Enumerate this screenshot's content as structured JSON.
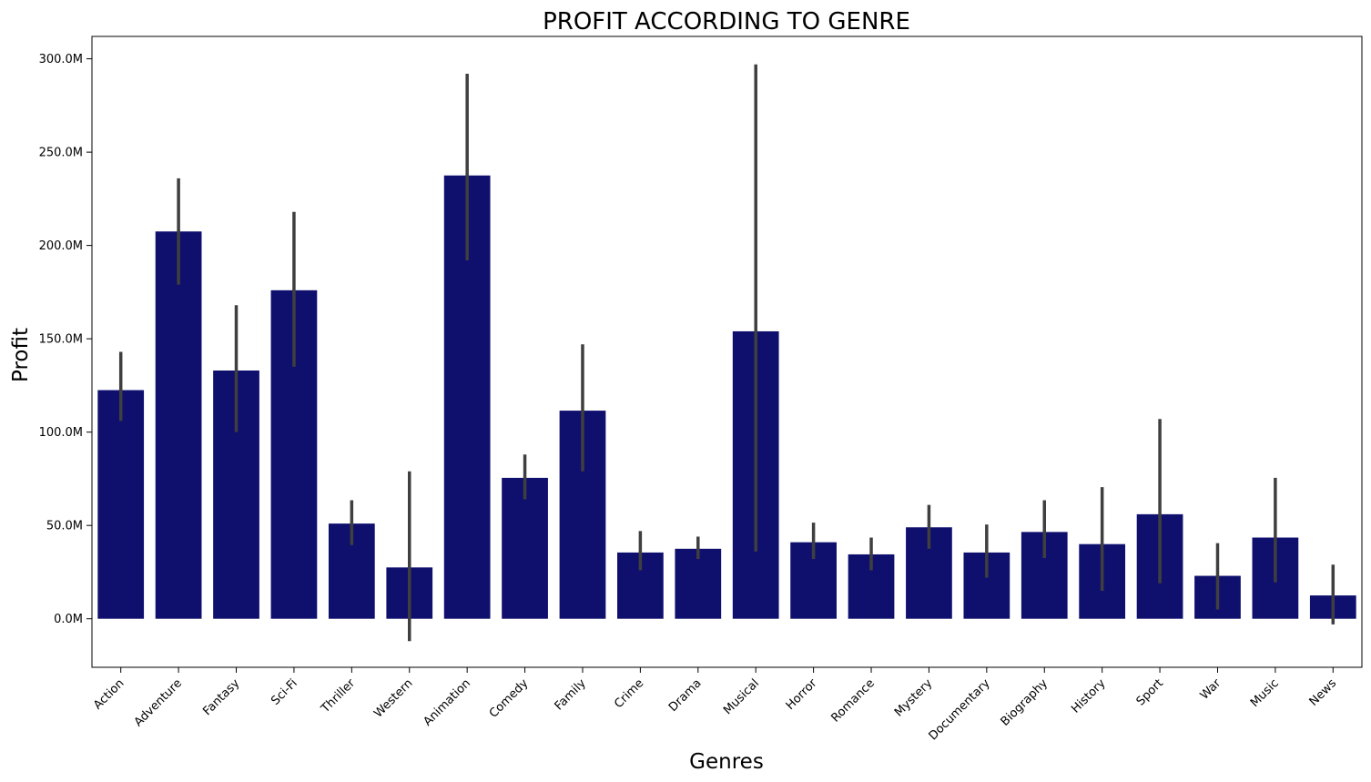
{
  "chart_data": {
    "type": "bar",
    "title": "PROFIT ACCORDING TO GENRE",
    "xlabel": "Genres",
    "ylabel": "Profit",
    "ylim": [
      -26,
      312
    ],
    "yticks": [
      0,
      50,
      100,
      150,
      200,
      250,
      300
    ],
    "ytick_labels": [
      "0.0M",
      "50.0M",
      "100.0M",
      "150.0M",
      "200.0M",
      "250.0M",
      "300.0M"
    ],
    "value_unit": "M",
    "grid": false,
    "legend": "none",
    "bar_color": "#0f0f6e",
    "errorbar_color": "#3f3f3f",
    "categories": [
      "Action",
      "Adventure",
      "Fantasy",
      "Sci-Fi",
      "Thriller",
      "Western",
      "Animation",
      "Comedy",
      "Family",
      "Crime",
      "Drama",
      "Musical",
      "Horror",
      "Romance",
      "Mystery",
      "Documentary",
      "Biography",
      "History",
      "Sport",
      "War",
      "Music",
      "News"
    ],
    "values": [
      122.5,
      207.5,
      133,
      176,
      51,
      27.5,
      237.5,
      75.5,
      111.5,
      35.5,
      37.5,
      154,
      41,
      34.5,
      49,
      35.5,
      46.5,
      40,
      56,
      23,
      43.5,
      12.5
    ],
    "ci_low": [
      106,
      179,
      100,
      135,
      39.5,
      -12,
      192,
      64,
      79,
      26,
      32,
      36,
      32,
      26,
      37.5,
      22,
      32.5,
      15,
      19,
      5,
      19.5,
      -3
    ],
    "ci_high": [
      143,
      236,
      168,
      218,
      63.5,
      79,
      292,
      88,
      147,
      47,
      44,
      297,
      51.5,
      43.5,
      61,
      50.5,
      63.5,
      70.5,
      107,
      40.5,
      75.5,
      29
    ]
  }
}
